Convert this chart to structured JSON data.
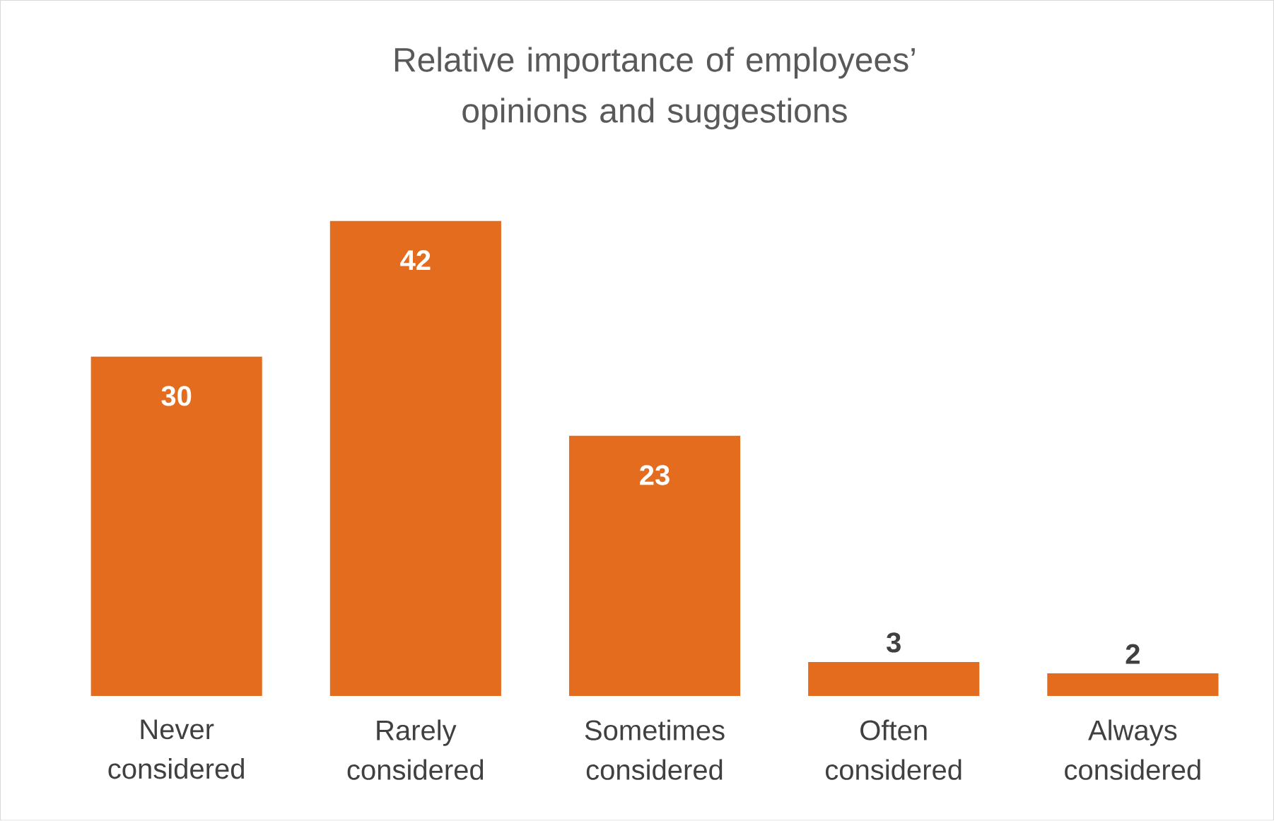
{
  "chart_data": {
    "type": "bar",
    "title": "Relative importance of employees’ opinions and suggestions",
    "categories": [
      "Never considered",
      "Rarely considered",
      "Sometimes considered",
      "Often considered",
      "Always considered"
    ],
    "values": [
      30,
      42,
      23,
      3,
      2
    ],
    "color": "#e46c1e",
    "data_labels": true
  }
}
